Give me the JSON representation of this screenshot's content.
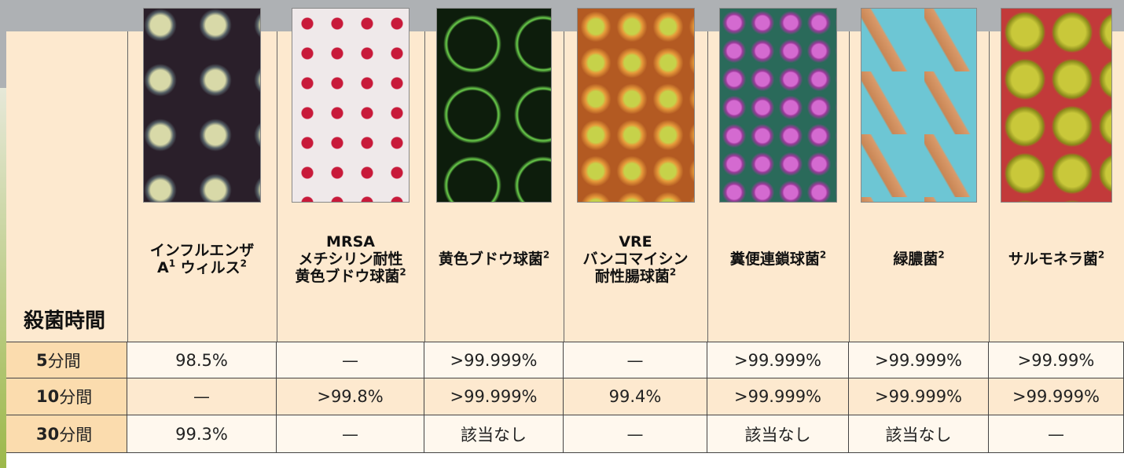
{
  "table": {
    "row_header": "殺菌時間",
    "columns": [
      {
        "lines": [
          [
            {
              "t": "インフルエンザ"
            }
          ],
          [
            {
              "t": "A"
            },
            {
              "t": "1",
              "sup": true
            },
            {
              "t": " ウィルス"
            },
            {
              "t": "2",
              "sup": true
            }
          ]
        ]
      },
      {
        "lines": [
          [
            {
              "t": "MRSA"
            }
          ],
          [
            {
              "t": "メチシリン耐性"
            }
          ],
          [
            {
              "t": "黄色ブドウ球菌"
            },
            {
              "t": "2",
              "sup": true
            }
          ]
        ]
      },
      {
        "lines": [
          [
            {
              "t": "黄色ブドウ球菌"
            },
            {
              "t": "2",
              "sup": true
            }
          ]
        ]
      },
      {
        "lines": [
          [
            {
              "t": "VRE"
            }
          ],
          [
            {
              "t": "バンコマイシン"
            }
          ],
          [
            {
              "t": "耐性腸球菌"
            },
            {
              "t": "2",
              "sup": true
            }
          ]
        ]
      },
      {
        "lines": [
          [
            {
              "t": "糞便連鎖球菌"
            },
            {
              "t": "2",
              "sup": true
            }
          ]
        ]
      },
      {
        "lines": [
          [
            {
              "t": "緑膿菌"
            },
            {
              "t": "2",
              "sup": true
            }
          ]
        ]
      },
      {
        "lines": [
          [
            {
              "t": "サルモネラ菌"
            },
            {
              "t": "2",
              "sup": true
            }
          ]
        ]
      }
    ],
    "rows": [
      {
        "label": [
          {
            "t": "5",
            "bold": true
          },
          {
            "t": " 分間"
          }
        ],
        "cells": [
          "98.5%",
          "—",
          ">99.999%",
          "—",
          ">99.999%",
          ">99.999%",
          ">99.99%"
        ]
      },
      {
        "label": [
          {
            "t": "10",
            "bold": true
          },
          {
            "t": " 分間"
          }
        ],
        "cells": [
          "—",
          ">99.8%",
          ">99.999%",
          "99.4%",
          ">99.999%",
          ">99.999%",
          ">99.999%"
        ]
      },
      {
        "label": [
          {
            "t": "30",
            "bold": true
          },
          {
            "t": " 分間"
          }
        ],
        "cells": [
          "99.3%",
          "—",
          "該当なし",
          "—",
          "該当なし",
          "該当なし",
          "—"
        ]
      }
    ]
  }
}
